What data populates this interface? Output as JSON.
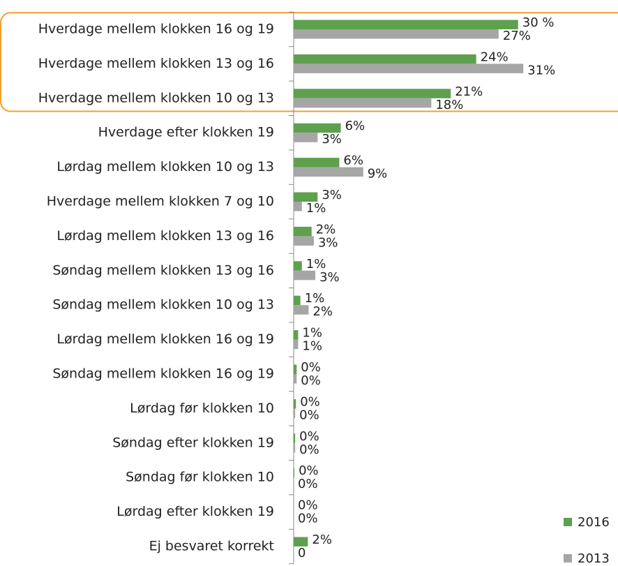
{
  "chart_data": {
    "type": "barh",
    "categories": [
      "Hverdage mellem klokken 16 og 19",
      "Hverdage mellem klokken 13 og 16",
      "Hverdage mellem klokken 10 og 13",
      "Hverdage efter klokken 19",
      "Lørdag mellem klokken 10 og 13",
      "Hverdage mellem klokken 7 og 10",
      "Lørdag mellem klokken 13 og 16",
      "Søndag  mellem klokken 13 og 16",
      "Søndag  mellem klokken 10 og 13",
      "Lørdag mellem klokken 16 og 19",
      "Søndag  mellem klokken 16 og 19",
      "Lørdag før klokken 10",
      "Søndag  efter klokken 19",
      "Søndag  før klokken 10",
      "Lørdag efter klokken 19",
      "Ej besvaret korrekt"
    ],
    "series": [
      {
        "name": "2016",
        "color": "#5fa04e",
        "values": [
          30,
          24.4,
          21,
          6.3,
          6.1,
          3.2,
          2.4,
          1.1,
          0.9,
          0.6,
          0.4,
          0.3,
          0.2,
          0.1,
          0,
          1.9
        ],
        "value_labels": [
          "30 %",
          "24%",
          "21%",
          "6%",
          "6%",
          "3%",
          "2%",
          "1%",
          "1%",
          "1%",
          "0%",
          "0%",
          "0%",
          "0%",
          "0%",
          "2%"
        ]
      },
      {
        "name": "2013",
        "color": "#a6a6a6",
        "values": [
          27.4,
          30.7,
          18.4,
          3.2,
          9.3,
          1.1,
          2.7,
          2.9,
          2,
          0.6,
          0.4,
          0.2,
          0.2,
          0,
          0,
          0
        ],
        "value_labels": [
          "27%",
          "31%",
          "18%",
          "3%",
          "9%",
          "1%",
          "3%",
          "3%",
          "2%",
          "1%",
          "0%",
          "0%",
          "0%",
          "0%",
          "0%",
          "0"
        ]
      }
    ],
    "xlim": [
      0,
      40
    ],
    "legend": "bottom-right",
    "highlight": [
      0,
      2
    ],
    "highlight_color": "#f0a030"
  }
}
